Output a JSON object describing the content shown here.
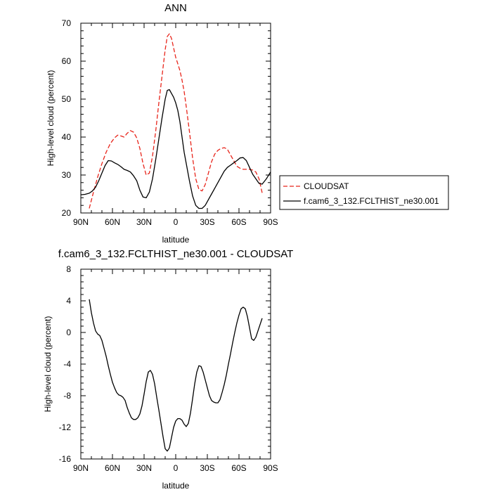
{
  "chart_data": [
    {
      "type": "line",
      "title": "ANN",
      "xlabel": "latitude",
      "ylabel": "High-level cloud (percent)",
      "xlim": [
        -90,
        90
      ],
      "ylim": [
        20,
        70
      ],
      "xticks": [
        -90,
        -60,
        -30,
        0,
        30,
        60,
        90
      ],
      "xticklabels": [
        "90N",
        "60N",
        "30N",
        "0",
        "30S",
        "60S",
        "90S"
      ],
      "yticks": [
        20,
        30,
        40,
        50,
        60,
        70
      ],
      "yticklabels": [
        "20",
        "30",
        "40",
        "50",
        "60",
        "70"
      ],
      "legend": "right",
      "series": [
        {
          "name": "CLOUDSAT",
          "color": "#e8251b",
          "dash": "dashed",
          "x": [
            -82,
            -78,
            -74,
            -70,
            -66,
            -62,
            -58,
            -55,
            -52,
            -49,
            -46,
            -43,
            -40,
            -37,
            -34,
            -31,
            -28,
            -25,
            -22,
            -19,
            -16,
            -13,
            -10,
            -8,
            -6,
            -4,
            -2,
            0,
            2,
            4,
            6,
            8,
            10,
            13,
            16,
            19,
            22,
            25,
            28,
            31,
            34,
            37,
            40,
            43,
            46,
            49,
            52,
            55,
            58,
            61,
            64,
            67,
            70,
            73,
            76,
            79,
            82
          ],
          "y": [
            21.2,
            25.5,
            29.5,
            33.0,
            36.0,
            38.3,
            39.8,
            40.5,
            40.3,
            40.0,
            41.0,
            41.7,
            41.3,
            39.8,
            37.0,
            33.0,
            30.0,
            30.5,
            35.0,
            41.5,
            49.0,
            56.0,
            63.0,
            66.5,
            67.2,
            66.0,
            63.5,
            61.0,
            59.3,
            57.5,
            55.0,
            52.0,
            48.0,
            41.5,
            34.5,
            29.0,
            26.2,
            25.8,
            27.5,
            30.5,
            33.5,
            35.5,
            36.5,
            37.0,
            37.2,
            36.8,
            35.3,
            33.8,
            32.3,
            31.8,
            31.5,
            31.5,
            31.5,
            31.3,
            30.8,
            29.0,
            25.3
          ]
        },
        {
          "name": "f.cam6_3_132.FCLTHIST_ne30.001",
          "color": "#000000",
          "dash": "solid",
          "x": [
            -90,
            -86,
            -82,
            -79,
            -76,
            -73,
            -70,
            -67,
            -64,
            -61,
            -58,
            -55,
            -52,
            -49,
            -46,
            -43,
            -40,
            -37,
            -34,
            -31,
            -28,
            -25,
            -22,
            -19,
            -16,
            -13,
            -10,
            -8,
            -6,
            -4,
            -2,
            0,
            2,
            4,
            6,
            8,
            10,
            13,
            16,
            19,
            22,
            25,
            28,
            31,
            34,
            37,
            40,
            43,
            46,
            49,
            52,
            55,
            58,
            61,
            64,
            67,
            70,
            73,
            76,
            79,
            82,
            86,
            90
          ],
          "y": [
            24.8,
            24.9,
            25.2,
            25.8,
            26.8,
            28.5,
            30.5,
            32.5,
            33.8,
            33.7,
            33.2,
            32.8,
            32.2,
            31.5,
            31.2,
            30.8,
            29.8,
            28.5,
            26.0,
            24.2,
            24.0,
            25.5,
            29.0,
            34.0,
            39.5,
            45.0,
            50.0,
            52.3,
            52.5,
            51.5,
            50.5,
            49.0,
            47.0,
            44.0,
            40.0,
            36.0,
            33.0,
            28.5,
            24.5,
            22.0,
            21.2,
            21.2,
            22.0,
            23.5,
            25.0,
            26.5,
            28.0,
            29.5,
            31.0,
            32.0,
            32.6,
            33.2,
            33.8,
            34.5,
            34.6,
            33.8,
            32.0,
            30.2,
            29.0,
            27.8,
            27.6,
            29.0,
            30.8
          ]
        }
      ]
    },
    {
      "type": "line",
      "title": "f.cam6_3_132.FCLTHIST_ne30.001 - CLOUDSAT",
      "xlabel": "latitude",
      "ylabel": "High-level cloud (percent)",
      "xlim": [
        -90,
        90
      ],
      "ylim": [
        -16,
        8
      ],
      "xticks": [
        -90,
        -60,
        -30,
        0,
        30,
        60,
        90
      ],
      "xticklabels": [
        "90N",
        "60N",
        "30N",
        "0",
        "30S",
        "60S",
        "90S"
      ],
      "yticks": [
        -16,
        -12,
        -8,
        -4,
        0,
        4,
        8
      ],
      "yticklabels": [
        "-16",
        "-12",
        "-8",
        "-4",
        "0",
        "4",
        "8"
      ],
      "series": [
        {
          "color": "#000000",
          "dash": "solid",
          "x": [
            -82,
            -80,
            -78,
            -76,
            -74,
            -72,
            -70,
            -68,
            -66,
            -64,
            -62,
            -60,
            -58,
            -56,
            -54,
            -52,
            -50,
            -48,
            -46,
            -44,
            -42,
            -40,
            -38,
            -36,
            -34,
            -32,
            -30,
            -28,
            -26,
            -24,
            -22,
            -20,
            -18,
            -16,
            -14,
            -12,
            -10,
            -8,
            -6,
            -4,
            -2,
            0,
            2,
            4,
            6,
            8,
            10,
            12,
            14,
            16,
            18,
            20,
            22,
            24,
            26,
            28,
            30,
            32,
            34,
            36,
            38,
            40,
            42,
            44,
            46,
            48,
            50,
            52,
            54,
            56,
            58,
            60,
            62,
            64,
            66,
            68,
            70,
            72,
            74,
            76,
            78,
            80,
            82
          ],
          "y": [
            4.2,
            2.5,
            1.2,
            0.2,
            -0.2,
            -0.4,
            -1.0,
            -2.0,
            -3.0,
            -4.2,
            -5.3,
            -6.3,
            -7.0,
            -7.6,
            -7.9,
            -8.0,
            -8.2,
            -8.6,
            -9.5,
            -10.2,
            -10.8,
            -11.0,
            -11.0,
            -10.8,
            -10.3,
            -9.3,
            -7.8,
            -6.2,
            -5.0,
            -4.8,
            -5.3,
            -6.5,
            -8.2,
            -9.8,
            -11.5,
            -13.2,
            -14.7,
            -15.0,
            -14.6,
            -13.3,
            -12.0,
            -11.2,
            -10.9,
            -10.9,
            -11.1,
            -11.6,
            -11.9,
            -11.5,
            -10.2,
            -8.4,
            -6.5,
            -5.0,
            -4.2,
            -4.3,
            -5.0,
            -6.0,
            -7.0,
            -8.0,
            -8.6,
            -8.8,
            -8.9,
            -8.9,
            -8.5,
            -7.6,
            -6.6,
            -5.4,
            -4.0,
            -2.7,
            -1.3,
            0.0,
            1.2,
            2.2,
            3.0,
            3.2,
            3.0,
            2.0,
            0.6,
            -0.8,
            -1.0,
            -0.6,
            0.2,
            1.0,
            1.8
          ]
        }
      ]
    }
  ]
}
